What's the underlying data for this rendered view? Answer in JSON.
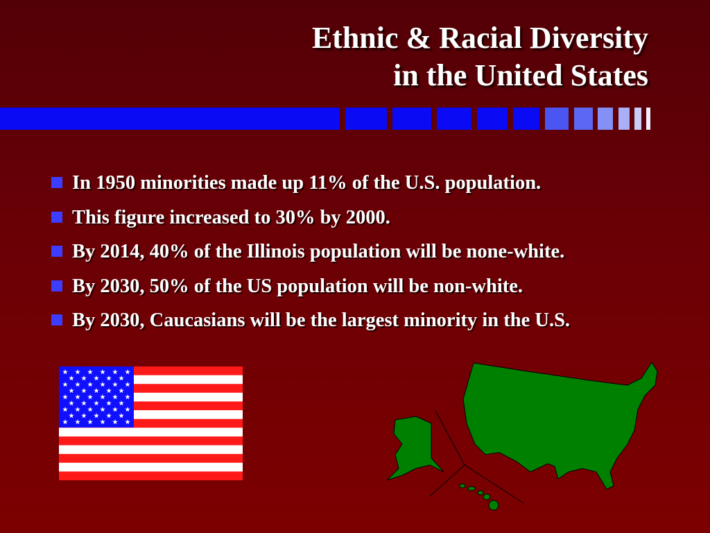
{
  "header": {
    "title": [
      "Ethnic & Racial Diversity",
      "in the United States"
    ]
  },
  "bullets": [
    "In 1950 minorities made up 11% of the U.S. population.",
    "This figure increased to 30% by 2000.",
    "By 2014, 40% of the Illinois population will be none-white.",
    "By 2030, 50% of the US population will be non-white.",
    "By 2030, Caucasians will be the largest minority in the U.S."
  ]
}
